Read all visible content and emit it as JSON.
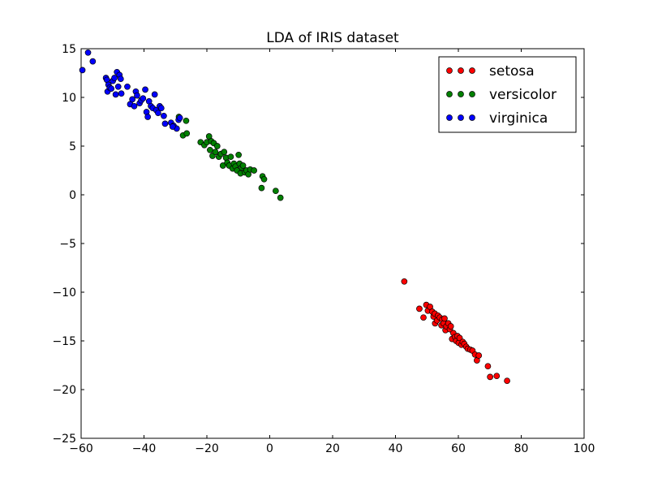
{
  "chart_data": {
    "type": "scatter",
    "title": "LDA of IRIS dataset",
    "xlabel": "",
    "ylabel": "",
    "xlim": [
      -60,
      100
    ],
    "ylim": [
      -25,
      15
    ],
    "xticks": [
      "−60",
      "−40",
      "−20",
      "0",
      "20",
      "40",
      "60",
      "80",
      "100"
    ],
    "xtick_values": [
      -60,
      -40,
      -20,
      0,
      20,
      40,
      60,
      80,
      100
    ],
    "yticks": [
      "15",
      "10",
      "5",
      "0",
      "−5",
      "−10",
      "−15",
      "−20",
      "−25"
    ],
    "ytick_values": [
      15,
      10,
      5,
      0,
      -5,
      -10,
      -15,
      -20,
      -25
    ],
    "grid": false,
    "legend_position": "top-right",
    "series": [
      {
        "name": "setosa",
        "color": "#ff0000",
        "points": [
          [
            42.8,
            -8.9
          ],
          [
            47.6,
            -11.7
          ],
          [
            48.9,
            -12.6
          ],
          [
            49.8,
            -11.3
          ],
          [
            50.3,
            -11.9
          ],
          [
            51.0,
            -11.5
          ],
          [
            51.7,
            -12.0
          ],
          [
            52.1,
            -12.5
          ],
          [
            52.5,
            -12.2
          ],
          [
            52.6,
            -13.2
          ],
          [
            53.2,
            -12.9
          ],
          [
            53.5,
            -12.4
          ],
          [
            54.1,
            -12.6
          ],
          [
            54.6,
            -13.4
          ],
          [
            54.9,
            -12.8
          ],
          [
            55.3,
            -13.2
          ],
          [
            55.6,
            -12.7
          ],
          [
            55.9,
            -13.9
          ],
          [
            56.2,
            -13.5
          ],
          [
            56.8,
            -13.2
          ],
          [
            57.3,
            -13.8
          ],
          [
            57.6,
            -13.5
          ],
          [
            58.0,
            -14.8
          ],
          [
            58.4,
            -14.2
          ],
          [
            58.9,
            -14.6
          ],
          [
            59.3,
            -15.0
          ],
          [
            59.7,
            -14.5
          ],
          [
            60.1,
            -15.2
          ],
          [
            60.4,
            -14.7
          ],
          [
            61.0,
            -15.4
          ],
          [
            61.4,
            -15.1
          ],
          [
            61.9,
            -15.3
          ],
          [
            62.5,
            -15.6
          ],
          [
            63.0,
            -15.8
          ],
          [
            63.8,
            -15.9
          ],
          [
            64.5,
            -16.0
          ],
          [
            65.3,
            -16.4
          ],
          [
            65.9,
            -17.0
          ],
          [
            66.5,
            -16.5
          ],
          [
            69.4,
            -17.6
          ],
          [
            70.1,
            -18.7
          ],
          [
            72.2,
            -18.6
          ],
          [
            75.5,
            -19.1
          ]
        ]
      },
      {
        "name": "versicolor",
        "color": "#008000",
        "points": [
          [
            -28.9,
            8.0
          ],
          [
            -27.6,
            6.1
          ],
          [
            -26.6,
            7.6
          ],
          [
            -26.4,
            6.3
          ],
          [
            -22.0,
            5.4
          ],
          [
            -20.8,
            5.1
          ],
          [
            -20.0,
            5.4
          ],
          [
            -19.3,
            6.0
          ],
          [
            -19.0,
            4.6
          ],
          [
            -18.6,
            5.5
          ],
          [
            -18.2,
            4.0
          ],
          [
            -17.8,
            5.3
          ],
          [
            -17.3,
            4.4
          ],
          [
            -16.7,
            5.0
          ],
          [
            -16.2,
            3.9
          ],
          [
            -15.5,
            4.2
          ],
          [
            -14.9,
            3.0
          ],
          [
            -14.5,
            4.4
          ],
          [
            -13.9,
            3.8
          ],
          [
            -13.5,
            3.3
          ],
          [
            -12.9,
            3.0
          ],
          [
            -12.4,
            3.9
          ],
          [
            -11.8,
            2.7
          ],
          [
            -11.4,
            3.2
          ],
          [
            -10.9,
            2.9
          ],
          [
            -10.4,
            2.5
          ],
          [
            -9.9,
            4.1
          ],
          [
            -9.6,
            3.2
          ],
          [
            -9.3,
            2.2
          ],
          [
            -8.9,
            2.8
          ],
          [
            -8.5,
            3.0
          ],
          [
            -7.9,
            2.3
          ],
          [
            -7.4,
            2.5
          ],
          [
            -6.8,
            2.1
          ],
          [
            -6.2,
            2.6
          ],
          [
            -5.0,
            2.5
          ],
          [
            -2.6,
            0.7
          ],
          [
            -2.3,
            1.9
          ],
          [
            -1.8,
            1.6
          ],
          [
            1.9,
            0.4
          ],
          [
            3.4,
            -0.3
          ]
        ]
      },
      {
        "name": "virginica",
        "color": "#0000ff",
        "points": [
          [
            -59.6,
            12.8
          ],
          [
            -57.8,
            14.6
          ],
          [
            -56.3,
            13.7
          ],
          [
            -52.1,
            12.0
          ],
          [
            -51.8,
            11.8
          ],
          [
            -51.6,
            10.6
          ],
          [
            -51.3,
            11.3
          ],
          [
            -50.9,
            11.0
          ],
          [
            -50.4,
            10.9
          ],
          [
            -49.9,
            11.7
          ],
          [
            -49.4,
            12.0
          ],
          [
            -49.0,
            10.3
          ],
          [
            -48.6,
            12.6
          ],
          [
            -48.2,
            11.1
          ],
          [
            -47.8,
            12.3
          ],
          [
            -47.4,
            11.9
          ],
          [
            -47.2,
            10.4
          ],
          [
            -45.3,
            11.1
          ],
          [
            -44.4,
            9.3
          ],
          [
            -43.7,
            9.8
          ],
          [
            -43.1,
            9.1
          ],
          [
            -42.6,
            10.6
          ],
          [
            -42.2,
            10.2
          ],
          [
            -41.4,
            9.4
          ],
          [
            -40.9,
            9.7
          ],
          [
            -40.3,
            9.9
          ],
          [
            -39.6,
            10.8
          ],
          [
            -39.2,
            8.5
          ],
          [
            -38.8,
            8.0
          ],
          [
            -38.4,
            9.6
          ],
          [
            -37.8,
            9.1
          ],
          [
            -37.2,
            8.9
          ],
          [
            -36.6,
            10.3
          ],
          [
            -36.1,
            8.7
          ],
          [
            -35.5,
            8.4
          ],
          [
            -35.0,
            9.1
          ],
          [
            -34.5,
            8.9
          ],
          [
            -33.3,
            7.3
          ],
          [
            -33.7,
            8.1
          ],
          [
            -31.4,
            7.4
          ],
          [
            -30.6,
            7.1
          ],
          [
            -29.6,
            6.8
          ],
          [
            -29.0,
            7.7
          ],
          [
            -28.6,
            7.9
          ],
          [
            -30.9,
            7.0
          ]
        ]
      }
    ]
  }
}
